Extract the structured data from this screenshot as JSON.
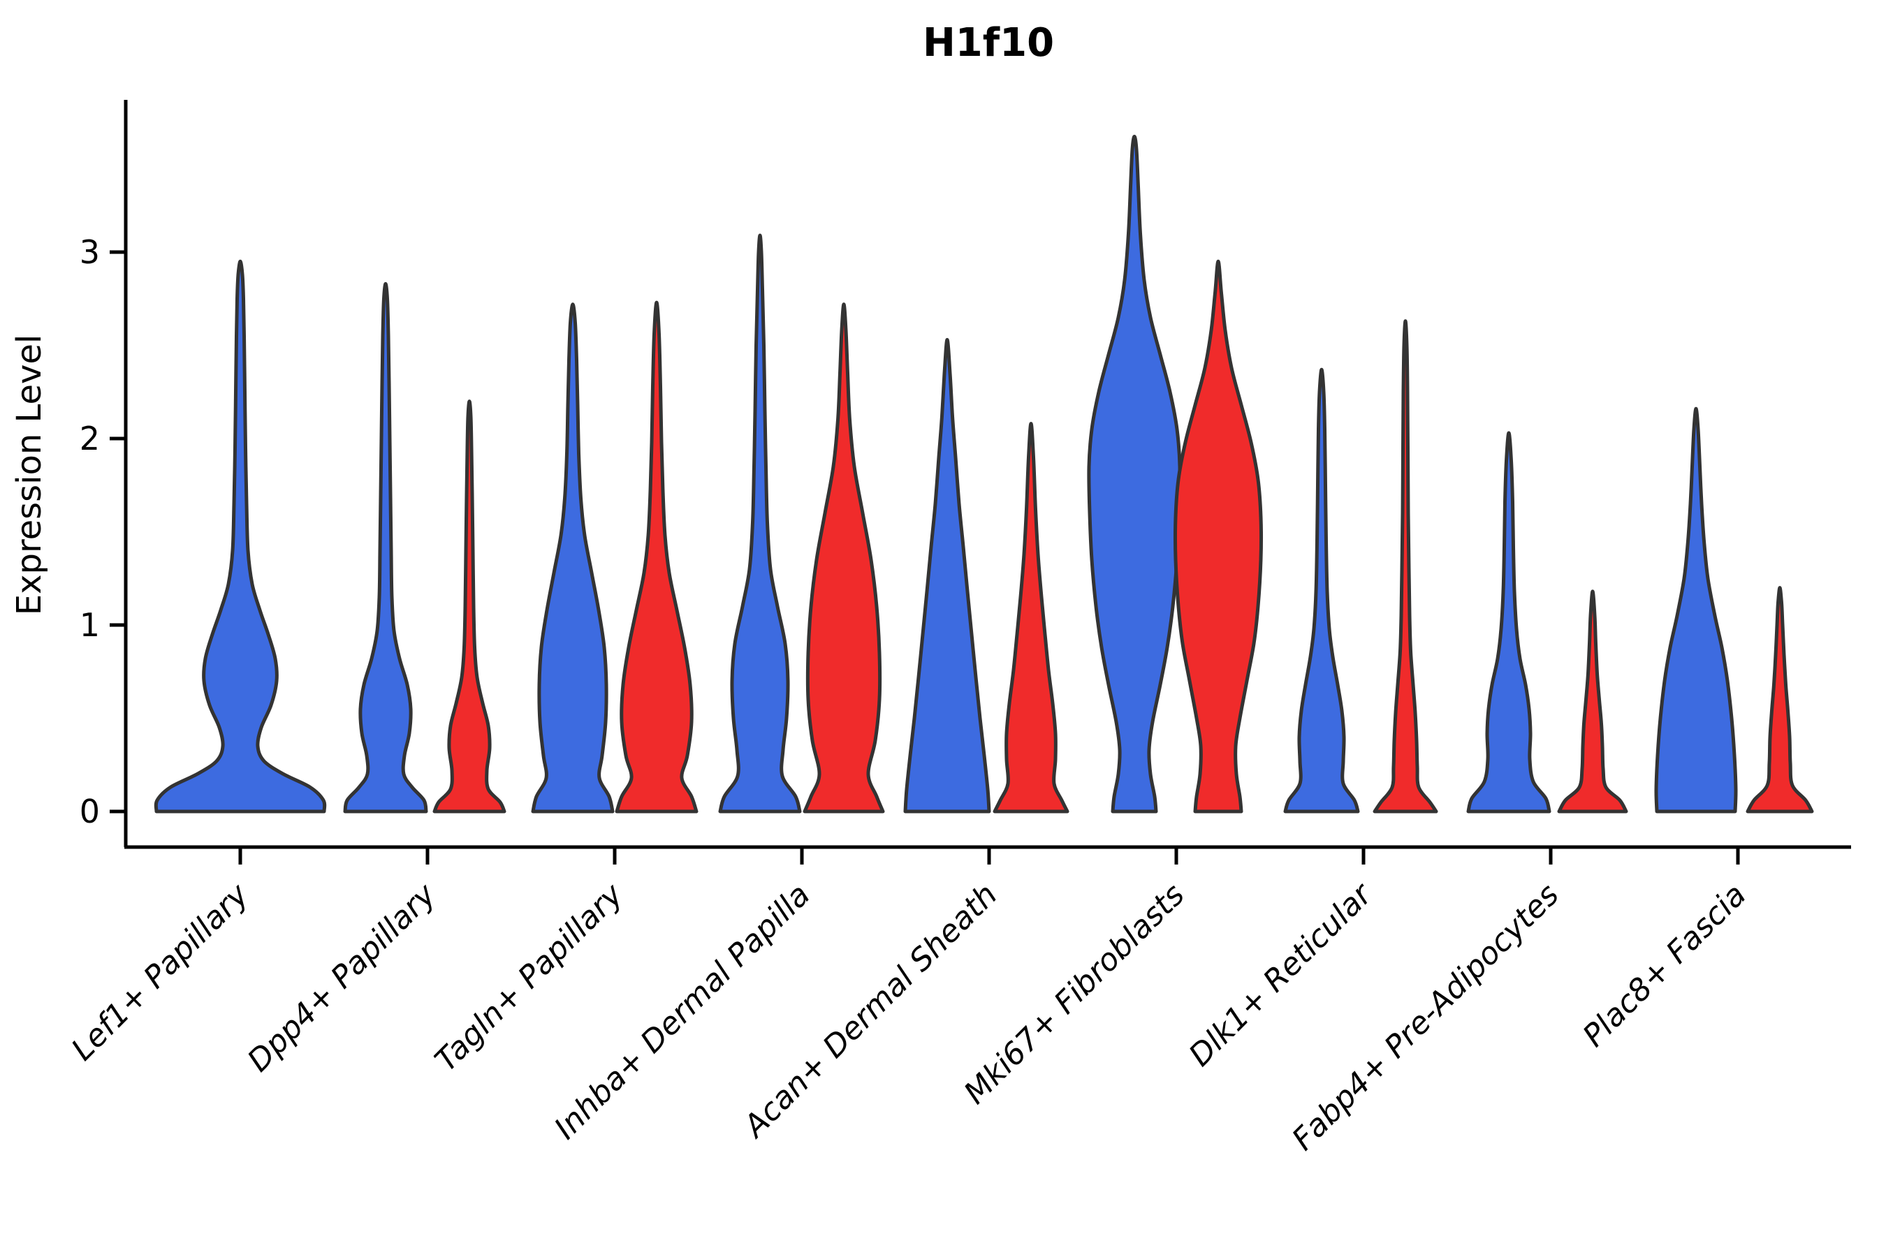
{
  "title": "H1f10",
  "y_axis": {
    "label": "Expression Level",
    "ticks": [
      "0",
      "1",
      "2",
      "3"
    ]
  },
  "x_axis": {
    "categories": [
      "Lef1+ Papillary",
      "Dpp4+ Papillary",
      "Tagln+ Papillary",
      "Inhba+ Dermal Papilla",
      "Acan+ Dermal Sheath",
      "Mki67+ Fibroblasts",
      "Dlk1+ Reticular",
      "Fabp4+ Pre-Adipocytes",
      "Plac8+ Fascia"
    ]
  },
  "colors": {
    "blue_fill": "#3D6BE0",
    "red_fill": "#F02B2B",
    "violin_outline": "#333333",
    "axis": "#000000"
  },
  "chart_data": {
    "type": "violin",
    "title": "H1f10",
    "ylabel": "Expression Level",
    "ylim": [
      0,
      3.8
    ],
    "yticks": [
      0,
      1,
      2,
      3
    ],
    "grid": false,
    "legend": "none",
    "split_groups": [
      "blue",
      "red"
    ],
    "categories": [
      "Lef1+ Papillary",
      "Dpp4+ Papillary",
      "Tagln+ Papillary",
      "Inhba+ Dermal Papilla",
      "Acan+ Dermal Sheath",
      "Mki67+ Fibroblasts",
      "Dlk1+ Reticular",
      "Fabp4+ Pre-Adipocytes",
      "Plac8+ Fascia"
    ],
    "max_expression": {
      "blue": [
        2.95,
        2.83,
        2.72,
        3.09,
        2.53,
        3.62,
        2.37,
        2.03,
        2.16
      ],
      "red": [
        null,
        2.2,
        2.73,
        2.72,
        2.08,
        2.95,
        2.63,
        1.18,
        1.2
      ]
    },
    "violins": [
      {
        "category": "Lef1+ Papillary",
        "group": "blue",
        "center_x": 344,
        "max_expression": 2.95,
        "density_profile": [
          [
            0,
            120
          ],
          [
            0.06,
            119
          ],
          [
            0.13,
            100
          ],
          [
            0.2,
            62
          ],
          [
            0.27,
            34
          ],
          [
            0.35,
            25
          ],
          [
            0.45,
            30
          ],
          [
            0.57,
            44
          ],
          [
            0.7,
            52
          ],
          [
            0.82,
            50
          ],
          [
            0.95,
            40
          ],
          [
            1.08,
            28
          ],
          [
            1.22,
            17
          ],
          [
            1.4,
            11
          ],
          [
            1.65,
            9
          ],
          [
            1.95,
            7.5
          ],
          [
            2.25,
            6.5
          ],
          [
            2.55,
            5.5
          ],
          [
            2.75,
            4.5
          ],
          [
            2.88,
            3
          ],
          [
            2.95,
            0
          ]
        ]
      },
      {
        "category": "Dpp4+ Papillary",
        "group": "blue",
        "center_x": 552,
        "max_expression": 2.83,
        "density_profile": [
          [
            0,
            58
          ],
          [
            0.06,
            55
          ],
          [
            0.13,
            38
          ],
          [
            0.2,
            26
          ],
          [
            0.3,
            27
          ],
          [
            0.42,
            34
          ],
          [
            0.55,
            36
          ],
          [
            0.68,
            31
          ],
          [
            0.82,
            20
          ],
          [
            0.97,
            12
          ],
          [
            1.15,
            9
          ],
          [
            1.4,
            8
          ],
          [
            1.7,
            7
          ],
          [
            2.0,
            6
          ],
          [
            2.3,
            5
          ],
          [
            2.55,
            4
          ],
          [
            2.75,
            2.5
          ],
          [
            2.83,
            0
          ]
        ]
      },
      {
        "category": "Dpp4+ Papillary",
        "group": "red",
        "center_x": 672,
        "max_expression": 2.2,
        "density_profile": [
          [
            0,
            50
          ],
          [
            0.05,
            44
          ],
          [
            0.12,
            27
          ],
          [
            0.22,
            25
          ],
          [
            0.34,
            29
          ],
          [
            0.46,
            27
          ],
          [
            0.58,
            19
          ],
          [
            0.72,
            11
          ],
          [
            0.88,
            7.5
          ],
          [
            1.1,
            6
          ],
          [
            1.4,
            5
          ],
          [
            1.7,
            4
          ],
          [
            1.95,
            3
          ],
          [
            2.12,
            2
          ],
          [
            2.2,
            0
          ]
        ]
      },
      {
        "category": "Tagln+ Papillary",
        "group": "blue",
        "center_x": 820,
        "max_expression": 2.72,
        "density_profile": [
          [
            0,
            57
          ],
          [
            0.08,
            52
          ],
          [
            0.18,
            38
          ],
          [
            0.3,
            42
          ],
          [
            0.48,
            47
          ],
          [
            0.68,
            48
          ],
          [
            0.88,
            45
          ],
          [
            1.08,
            37
          ],
          [
            1.28,
            27
          ],
          [
            1.48,
            17
          ],
          [
            1.68,
            11.5
          ],
          [
            1.92,
            8.5
          ],
          [
            2.18,
            7
          ],
          [
            2.42,
            5.5
          ],
          [
            2.62,
            3.5
          ],
          [
            2.72,
            0
          ]
        ]
      },
      {
        "category": "Tagln+ Papillary",
        "group": "red",
        "center_x": 940,
        "max_expression": 2.73,
        "density_profile": [
          [
            0,
            57
          ],
          [
            0.08,
            50
          ],
          [
            0.18,
            36
          ],
          [
            0.3,
            44
          ],
          [
            0.48,
            50
          ],
          [
            0.68,
            48
          ],
          [
            0.88,
            40
          ],
          [
            1.08,
            29
          ],
          [
            1.28,
            18
          ],
          [
            1.48,
            12
          ],
          [
            1.72,
            9
          ],
          [
            1.98,
            7
          ],
          [
            2.28,
            5.5
          ],
          [
            2.56,
            3.5
          ],
          [
            2.73,
            0
          ]
        ]
      },
      {
        "category": "Inhba+ Dermal Papilla",
        "group": "blue",
        "center_x": 1088,
        "max_expression": 3.09,
        "density_profile": [
          [
            0,
            57
          ],
          [
            0.08,
            51
          ],
          [
            0.19,
            32
          ],
          [
            0.33,
            33
          ],
          [
            0.5,
            38
          ],
          [
            0.7,
            40
          ],
          [
            0.9,
            36
          ],
          [
            1.1,
            25
          ],
          [
            1.3,
            15
          ],
          [
            1.55,
            10.5
          ],
          [
            1.85,
            8.5
          ],
          [
            2.15,
            7
          ],
          [
            2.5,
            5.5
          ],
          [
            2.8,
            3.5
          ],
          [
            3.0,
            2
          ],
          [
            3.09,
            0
          ]
        ]
      },
      {
        "category": "Inhba+ Dermal Papilla",
        "group": "red",
        "center_x": 1208,
        "max_expression": 2.72,
        "density_profile": [
          [
            0,
            56
          ],
          [
            0.08,
            47
          ],
          [
            0.2,
            35
          ],
          [
            0.38,
            45
          ],
          [
            0.6,
            51
          ],
          [
            0.85,
            51
          ],
          [
            1.1,
            47
          ],
          [
            1.35,
            39
          ],
          [
            1.6,
            27
          ],
          [
            1.85,
            15
          ],
          [
            2.1,
            8.5
          ],
          [
            2.35,
            5.5
          ],
          [
            2.58,
            3
          ],
          [
            2.72,
            0
          ]
        ]
      },
      {
        "category": "Acan+ Dermal Sheath",
        "group": "blue",
        "center_x": 1356,
        "max_expression": 2.53,
        "density_profile": [
          [
            0,
            60
          ],
          [
            0.12,
            58
          ],
          [
            0.3,
            53
          ],
          [
            0.5,
            47
          ],
          [
            0.72,
            41
          ],
          [
            0.95,
            35
          ],
          [
            1.18,
            29
          ],
          [
            1.42,
            23
          ],
          [
            1.65,
            17
          ],
          [
            1.9,
            12
          ],
          [
            2.12,
            7.5
          ],
          [
            2.35,
            4
          ],
          [
            2.53,
            0
          ]
        ]
      },
      {
        "category": "Acan+ Dermal Sheath",
        "group": "red",
        "center_x": 1476,
        "max_expression": 2.08,
        "density_profile": [
          [
            0,
            52
          ],
          [
            0.06,
            44
          ],
          [
            0.15,
            33
          ],
          [
            0.28,
            35
          ],
          [
            0.42,
            35
          ],
          [
            0.58,
            31
          ],
          [
            0.76,
            25
          ],
          [
            0.95,
            20
          ],
          [
            1.15,
            15
          ],
          [
            1.38,
            10
          ],
          [
            1.62,
            6.5
          ],
          [
            1.9,
            3.5
          ],
          [
            2.08,
            0
          ]
        ]
      },
      {
        "category": "Mki67+ Fibroblasts",
        "group": "blue",
        "center_x": 1624,
        "max_expression": 3.62,
        "density_profile": [
          [
            0,
            31
          ],
          [
            0.08,
            29
          ],
          [
            0.2,
            23
          ],
          [
            0.33,
            21
          ],
          [
            0.48,
            26
          ],
          [
            0.68,
            37
          ],
          [
            0.88,
            47
          ],
          [
            1.1,
            55
          ],
          [
            1.35,
            61
          ],
          [
            1.6,
            64
          ],
          [
            1.85,
            65
          ],
          [
            2.05,
            61
          ],
          [
            2.25,
            51
          ],
          [
            2.45,
            37
          ],
          [
            2.65,
            23
          ],
          [
            2.85,
            14
          ],
          [
            3.1,
            8.5
          ],
          [
            3.35,
            5.5
          ],
          [
            3.55,
            3
          ],
          [
            3.62,
            0
          ]
        ]
      },
      {
        "category": "Mki67+ Fibroblasts",
        "group": "red",
        "center_x": 1744,
        "max_expression": 2.95,
        "density_profile": [
          [
            0,
            33
          ],
          [
            0.08,
            31
          ],
          [
            0.2,
            26
          ],
          [
            0.35,
            25
          ],
          [
            0.5,
            31
          ],
          [
            0.7,
            41
          ],
          [
            0.9,
            51
          ],
          [
            1.1,
            57
          ],
          [
            1.35,
            61
          ],
          [
            1.58,
            61
          ],
          [
            1.78,
            57
          ],
          [
            1.98,
            47
          ],
          [
            2.18,
            33
          ],
          [
            2.38,
            19
          ],
          [
            2.58,
            10
          ],
          [
            2.78,
            4.5
          ],
          [
            2.95,
            0
          ]
        ]
      },
      {
        "category": "Dlk1+ Reticular",
        "group": "blue",
        "center_x": 1892,
        "max_expression": 2.37,
        "density_profile": [
          [
            0,
            52
          ],
          [
            0.06,
            47
          ],
          [
            0.15,
            31
          ],
          [
            0.27,
            31
          ],
          [
            0.4,
            32
          ],
          [
            0.54,
            29
          ],
          [
            0.68,
            23
          ],
          [
            0.83,
            16
          ],
          [
            0.98,
            11
          ],
          [
            1.18,
            8
          ],
          [
            1.45,
            6.5
          ],
          [
            1.75,
            5.5
          ],
          [
            2.05,
            4.5
          ],
          [
            2.25,
            3
          ],
          [
            2.37,
            0
          ]
        ]
      },
      {
        "category": "Dlk1+ Reticular",
        "group": "red",
        "center_x": 2012,
        "max_expression": 2.63,
        "density_profile": [
          [
            0,
            44
          ],
          [
            0.05,
            35
          ],
          [
            0.13,
            19
          ],
          [
            0.24,
            17
          ],
          [
            0.38,
            16
          ],
          [
            0.53,
            14
          ],
          [
            0.68,
            11
          ],
          [
            0.86,
            7.5
          ],
          [
            1.05,
            6
          ],
          [
            1.3,
            5
          ],
          [
            1.6,
            4
          ],
          [
            1.95,
            3.5
          ],
          [
            2.25,
            3
          ],
          [
            2.5,
            2
          ],
          [
            2.63,
            0
          ]
        ]
      },
      {
        "category": "Fabp4+ Pre-Adipocytes",
        "group": "blue",
        "center_x": 2160,
        "max_expression": 2.03,
        "density_profile": [
          [
            0,
            58
          ],
          [
            0.07,
            53
          ],
          [
            0.16,
            35
          ],
          [
            0.28,
            30
          ],
          [
            0.42,
            31
          ],
          [
            0.55,
            29
          ],
          [
            0.68,
            24
          ],
          [
            0.82,
            16
          ],
          [
            0.98,
            11
          ],
          [
            1.18,
            8
          ],
          [
            1.42,
            6.5
          ],
          [
            1.66,
            5.5
          ],
          [
            1.88,
            3.5
          ],
          [
            2.03,
            0
          ]
        ]
      },
      {
        "category": "Fabp4+ Pre-Adipocytes",
        "group": "red",
        "center_x": 2280,
        "max_expression": 1.18,
        "density_profile": [
          [
            0,
            48
          ],
          [
            0.06,
            39
          ],
          [
            0.13,
            19
          ],
          [
            0.23,
            15
          ],
          [
            0.35,
            14
          ],
          [
            0.47,
            12.5
          ],
          [
            0.6,
            9.5
          ],
          [
            0.74,
            6.5
          ],
          [
            0.9,
            4.5
          ],
          [
            1.05,
            3
          ],
          [
            1.18,
            0
          ]
        ]
      },
      {
        "category": "Plac8+ Fascia",
        "group": "blue",
        "center_x": 2428,
        "max_expression": 2.16,
        "density_profile": [
          [
            0,
            56
          ],
          [
            0.12,
            57
          ],
          [
            0.3,
            55
          ],
          [
            0.5,
            51
          ],
          [
            0.7,
            45
          ],
          [
            0.88,
            37
          ],
          [
            1.05,
            27
          ],
          [
            1.25,
            17
          ],
          [
            1.45,
            11.5
          ],
          [
            1.65,
            8
          ],
          [
            1.85,
            5.5
          ],
          [
            2.05,
            3
          ],
          [
            2.16,
            0
          ]
        ]
      },
      {
        "category": "Plac8+ Fascia",
        "group": "red",
        "center_x": 2548,
        "max_expression": 1.2,
        "density_profile": [
          [
            0,
            46
          ],
          [
            0.06,
            37
          ],
          [
            0.14,
            18
          ],
          [
            0.26,
            15
          ],
          [
            0.4,
            14
          ],
          [
            0.54,
            11.5
          ],
          [
            0.68,
            8.5
          ],
          [
            0.84,
            6
          ],
          [
            1.0,
            4
          ],
          [
            1.12,
            2.5
          ],
          [
            1.2,
            0
          ]
        ]
      }
    ]
  }
}
